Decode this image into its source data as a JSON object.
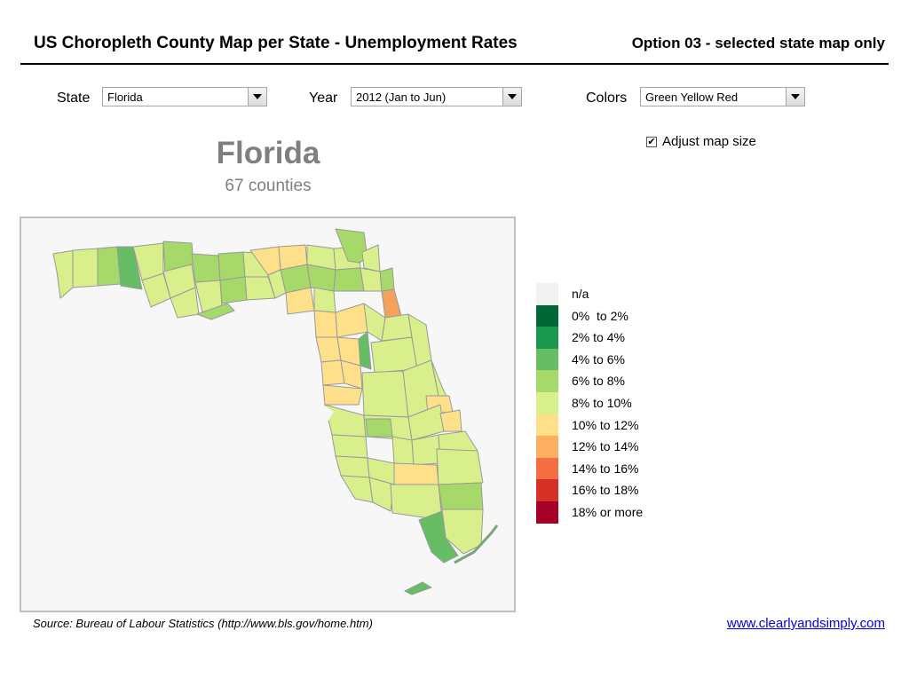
{
  "header": {
    "title": "US Choropleth County Map per State - Unemployment Rates",
    "option": "Option 03 - selected state map only"
  },
  "controls": {
    "state": {
      "label": "State",
      "value": "Florida"
    },
    "year": {
      "label": "Year",
      "value": "2012 (Jan to Jun)"
    },
    "colors": {
      "label": "Colors",
      "value": "Green Yellow Red"
    },
    "adjust": {
      "label": "Adjust map size",
      "checked": true,
      "mark": "✔"
    }
  },
  "map": {
    "state_name": "Florida",
    "county_count": "67 counties"
  },
  "legend": [
    {
      "label": "n/a",
      "color": "#f2f2f2"
    },
    {
      "label": "0%  to 2%",
      "color": "#006837"
    },
    {
      "label": "2% to 4%",
      "color": "#1a9850"
    },
    {
      "label": "4% to 6%",
      "color": "#66bd63"
    },
    {
      "label": "6% to 8%",
      "color": "#a6d96a"
    },
    {
      "label": "8% to 10%",
      "color": "#d9ef8b"
    },
    {
      "label": "10% to 12%",
      "color": "#fee08b"
    },
    {
      "label": "12% to 14%",
      "color": "#fdae61"
    },
    {
      "label": "14% to 16%",
      "color": "#f46d43"
    },
    {
      "label": "16% to 18%",
      "color": "#d73027"
    },
    {
      "label": "18% or more",
      "color": "#a50026"
    }
  ],
  "footer": {
    "source": "Source: Bureau of Labour Statistics (http://www.bls.gov/home.htm)",
    "site": "www.clearlyandsimply.com"
  },
  "icons": {
    "dropdown": "chevron-down-icon",
    "checkbox": "checkbox-checked-icon"
  }
}
